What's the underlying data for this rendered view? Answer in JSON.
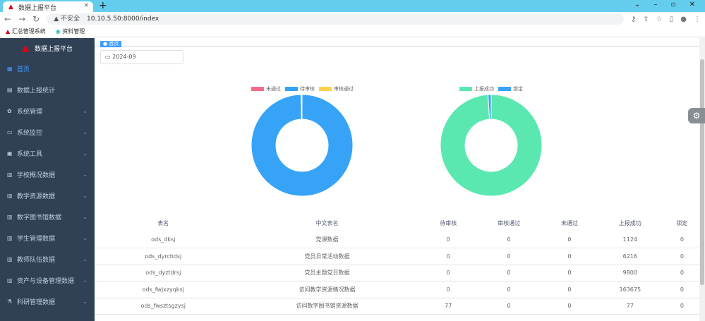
{
  "browser": {
    "tab_title": "数据上报平台",
    "url_warning": "不安全",
    "url": "10.10.5.50:8000/index",
    "bookmarks": [
      "汇总管理系统",
      "资料管理"
    ]
  },
  "sidebar": {
    "brand": "数据上报平台",
    "items": [
      {
        "label": "首页",
        "icon": "dashboard-icon",
        "active": true
      },
      {
        "label": "数据上报统计",
        "icon": "table-icon"
      },
      {
        "label": "系统管理",
        "icon": "gear-icon",
        "expandable": true
      },
      {
        "label": "系统监控",
        "icon": "monitor-icon",
        "expandable": true
      },
      {
        "label": "系统工具",
        "icon": "tool-icon",
        "expandable": true
      },
      {
        "label": "学校概况数据",
        "icon": "grid-icon",
        "expandable": true
      },
      {
        "label": "教学资源数据",
        "icon": "grid-icon",
        "expandable": true
      },
      {
        "label": "数字图书馆数据",
        "icon": "grid-icon",
        "expandable": true
      },
      {
        "label": "学生管理数据",
        "icon": "grid-icon",
        "expandable": true
      },
      {
        "label": "教师队伍数据",
        "icon": "grid-icon",
        "expandable": true
      },
      {
        "label": "资产与设备管理数据",
        "icon": "grid-icon",
        "expandable": true
      },
      {
        "label": "科研管理数据",
        "icon": "flask-icon",
        "expandable": true
      }
    ]
  },
  "tags": {
    "home": "首页"
  },
  "date_filter": {
    "value": "2024-09"
  },
  "charts": {
    "colors": {
      "未通过": "#f56c8a",
      "待审核": "#36a3f7",
      "审核通过": "#fcd34d",
      "上报成功": "#5ae8b0",
      "锁定": "#36a3f7"
    },
    "chart_data": [
      {
        "type": "pie",
        "legend": [
          "未通过",
          "待审核",
          "审核通过"
        ],
        "values": [
          0,
          99.7,
          0.3
        ],
        "colors": [
          "#f56c8a",
          "#36a3f7",
          "#fcd34d"
        ]
      },
      {
        "type": "pie",
        "legend": [
          "上报成功",
          "锁定"
        ],
        "values": [
          99,
          1
        ],
        "colors": [
          "#5ae8b0",
          "#36a3f7"
        ]
      }
    ]
  },
  "table": {
    "headers": [
      "表名",
      "中文表名",
      "待审核",
      "审核通过",
      "未通过",
      "上报成功",
      "锁定"
    ],
    "rows": [
      [
        "ods_dksj",
        "党课数据",
        "0",
        "0",
        "0",
        "1124",
        "0"
      ],
      [
        "ods_dyrchdsj",
        "党员日常活动数据",
        "0",
        "0",
        "0",
        "6216",
        "0"
      ],
      [
        "ods_dyztdrsj",
        "党员主题党日数据",
        "0",
        "0",
        "0",
        "9800",
        "0"
      ],
      [
        "ods_fwjxzyqksj",
        "访问教学资源情况数据",
        "0",
        "0",
        "0",
        "163675",
        "0"
      ],
      [
        "ods_fwsztsgzysj",
        "访问数字图书馆资源数据",
        "77",
        "0",
        "0",
        "77",
        "0"
      ]
    ]
  }
}
